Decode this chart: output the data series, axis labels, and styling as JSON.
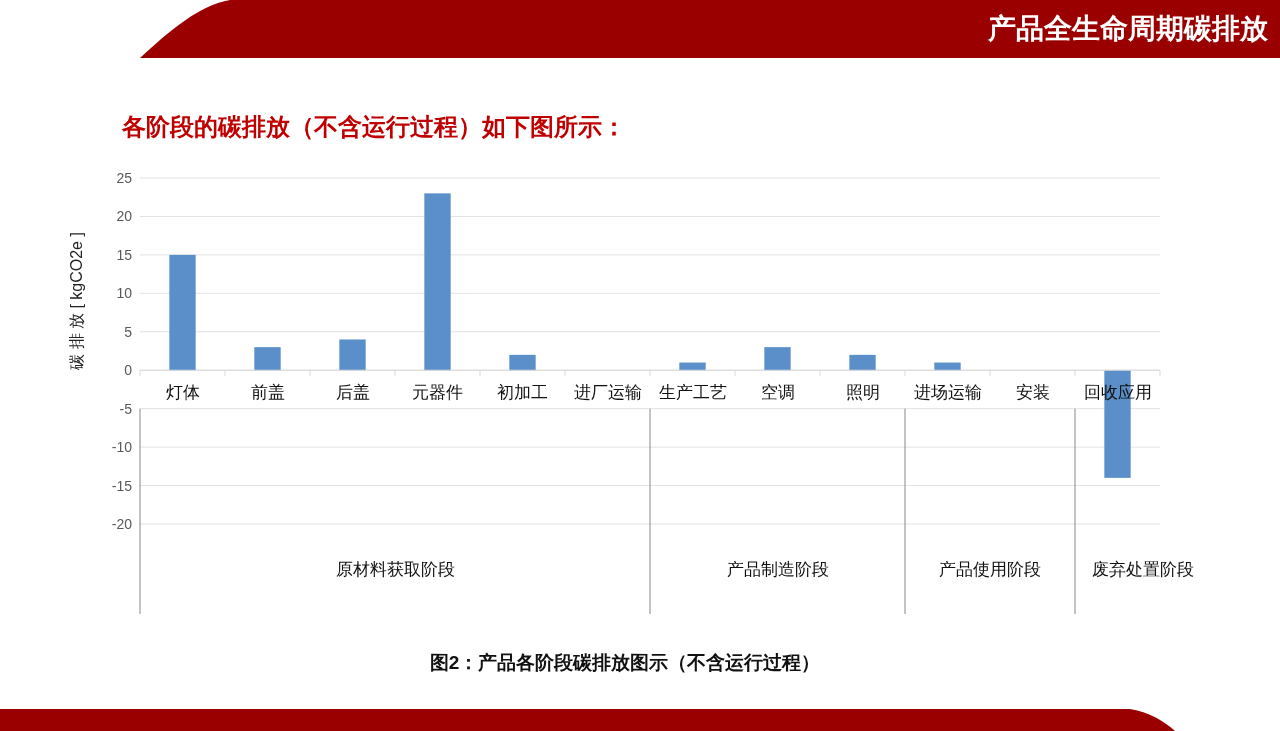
{
  "chart_data": {
    "type": "bar",
    "title": "产品全生命周期碳排放",
    "subtitle": "各阶段的碳排放（不含运行过程）如下图所示：",
    "ylabel": "碳 排 放 [ kgCO2e ]",
    "categories": [
      "灯体",
      "前盖",
      "后盖",
      "元器件",
      "初加工",
      "进厂运输",
      "生产工艺",
      "空调",
      "照明",
      "进场运输",
      "安装",
      "回收应用"
    ],
    "values": [
      15,
      3,
      4,
      23,
      2,
      0,
      1,
      3,
      2,
      1,
      0,
      -14
    ],
    "color": "#5b8fc9",
    "ylim": [
      -20,
      25
    ],
    "yticks": [
      -20,
      -15,
      -10,
      -5,
      0,
      5,
      10,
      15,
      20,
      25
    ],
    "grid": "y",
    "annotations": [
      "原材料获取阶段",
      "产品制造阶段",
      "产品使用阶段",
      "废弃处置阶段",
      "图2：产品各阶段碳排放图示（不含运行过程）"
    ]
  }
}
